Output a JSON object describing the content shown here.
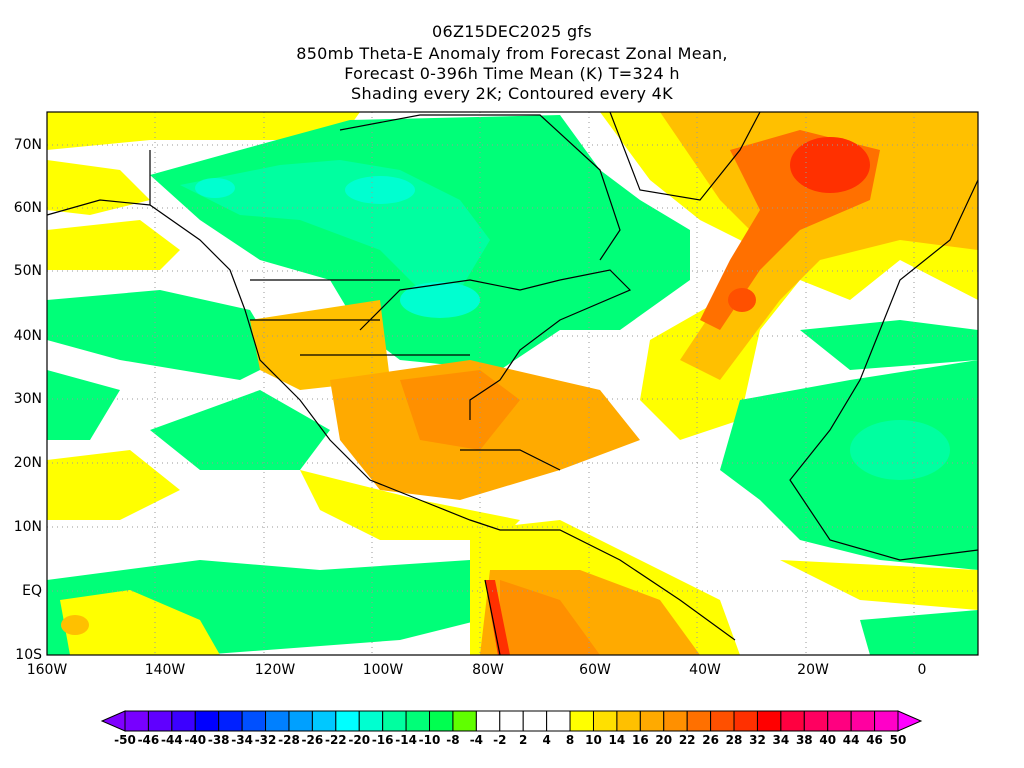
{
  "title": {
    "line1": "06Z15DEC2025 gfs",
    "line2": "850mb Theta-E Anomaly from Forecast Zonal Mean,",
    "line3": "Forecast 0-396h Time Mean (K) T=324 h",
    "line4": "Shading every 2K; Contoured every 4K"
  },
  "lat_labels": [
    "70N",
    "60N",
    "50N",
    "40N",
    "30N",
    "20N",
    "10N",
    "EQ",
    "10S"
  ],
  "lon_labels": [
    "160W",
    "140W",
    "120W",
    "100W",
    "80W",
    "60W",
    "40W",
    "20W",
    "0"
  ],
  "colorbar": {
    "labels": [
      "-50",
      "-46",
      "-44",
      "-40",
      "-38",
      "-34",
      "-32",
      "-28",
      "-26",
      "-22",
      "-20",
      "-16",
      "-14",
      "-10",
      "-8",
      "-4",
      "-2",
      "2",
      "4",
      "8",
      "10",
      "14",
      "16",
      "20",
      "22",
      "26",
      "28",
      "32",
      "34",
      "38",
      "40",
      "44",
      "46",
      "50"
    ],
    "low_color": "#8000ff",
    "high_color": "#ff00ff",
    "colors": [
      "#7800ff",
      "#6000ff",
      "#3c00ff",
      "#0000ff",
      "#0020ff",
      "#0050ff",
      "#0080ff",
      "#00a0ff",
      "#00c8ff",
      "#00ffff",
      "#00ffd0",
      "#00ffa0",
      "#00ff78",
      "#00ff50",
      "#60ff00",
      "#ffffff",
      "#ffffff",
      "#ffffff",
      "#ffffff",
      "#ffff00",
      "#ffe000",
      "#ffc000",
      "#ffaa00",
      "#ff9000",
      "#ff7000",
      "#ff5000",
      "#ff3000",
      "#ff0000",
      "#ff0040",
      "#ff0060",
      "#ff0080",
      "#ff00a0",
      "#ff00c8"
    ]
  }
}
